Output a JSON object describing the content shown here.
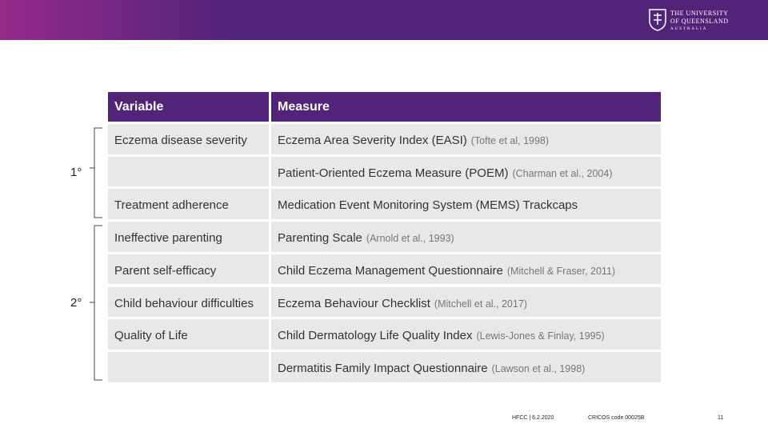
{
  "header": {
    "logo_lines": [
      "THE UNIVERSITY",
      "OF QUEENSLAND",
      "AUSTRALIA"
    ]
  },
  "table": {
    "columns": [
      "Variable",
      "Measure"
    ],
    "rows": [
      {
        "variable": "Eczema disease severity",
        "measure": "Eczema Area Severity Index (EASI)",
        "citation": "(Tofte et al, 1998)"
      },
      {
        "measure": "Patient-Oriented Eczema Measure (POEM)",
        "citation": "(Charman et al., 2004)"
      },
      {
        "variable": "Treatment adherence",
        "measure": "Medication Event Monitoring System (MEMS) Trackcaps"
      },
      {
        "variable": "Ineffective parenting",
        "measure": "Parenting Scale",
        "citation": "(Arnold et al., 1993)"
      },
      {
        "variable": "Parent self-efficacy",
        "measure": "Child Eczema Management Questionnaire",
        "citation": "(Mitchell & Fraser, 2011)"
      },
      {
        "variable": "Child behaviour difficulties",
        "measure": "Eczema Behaviour Checklist",
        "citation": "(Mitchell et al., 2017)"
      },
      {
        "variable": "Quality of Life",
        "measure": "Child Dermatology Life Quality Index",
        "citation": "(Lewis-Jones & Finlay, 1995)"
      },
      {
        "measure": "Dermatitis Family Impact Questionnaire",
        "citation": "(Lawson et al., 1998)"
      }
    ]
  },
  "groups": [
    "1°",
    "2°"
  ],
  "footer": {
    "event": "HFCC  |  6.2.2020",
    "cricos": "CRICOS code 00025B",
    "page": "11"
  }
}
